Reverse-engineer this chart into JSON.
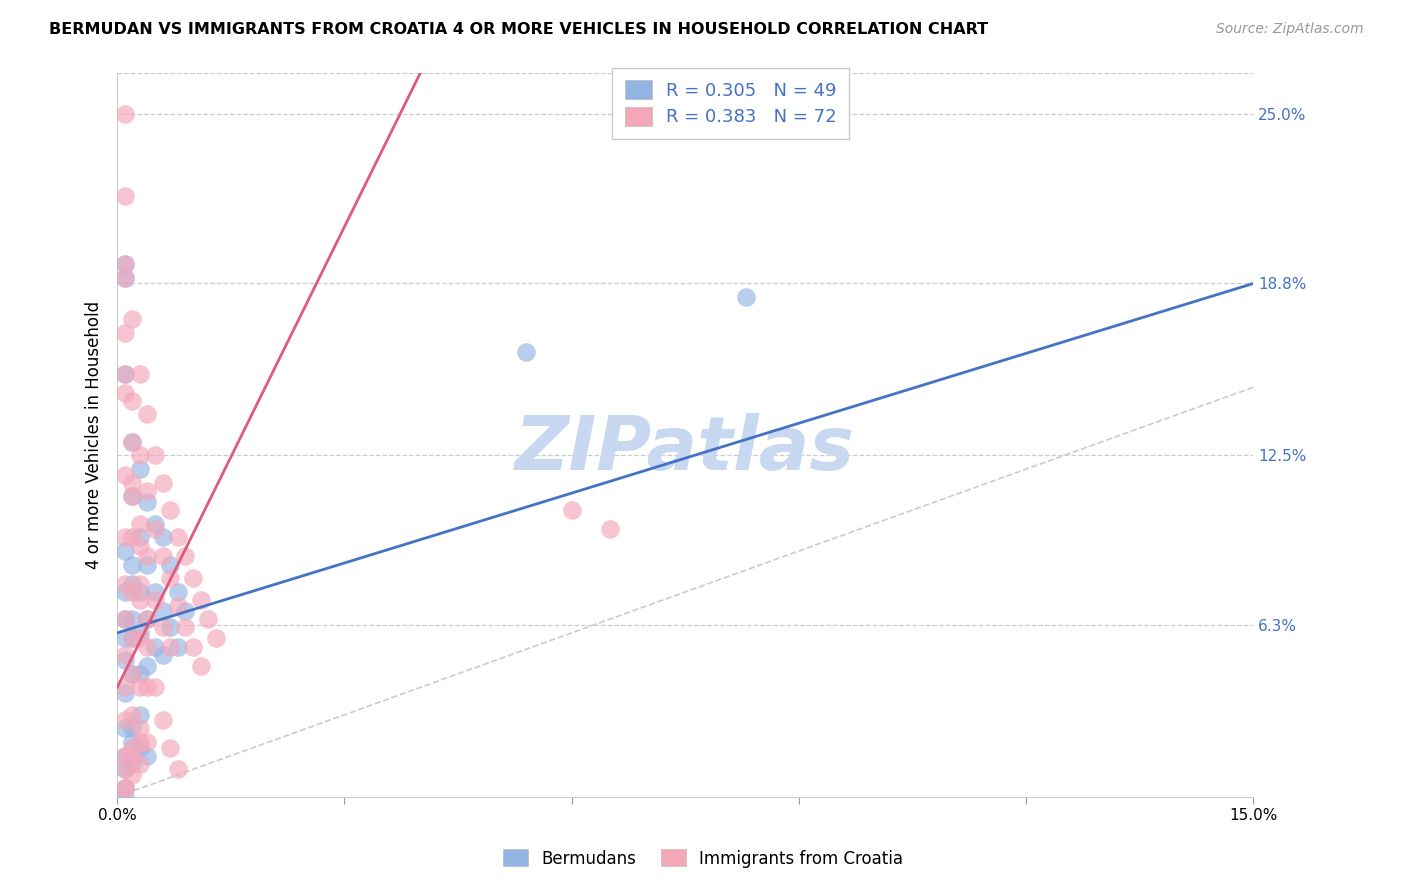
{
  "title": "BERMUDAN VS IMMIGRANTS FROM CROATIA 4 OR MORE VEHICLES IN HOUSEHOLD CORRELATION CHART",
  "source": "Source: ZipAtlas.com",
  "ylabel": "4 or more Vehicles in Household",
  "xlim": [
    0.0,
    0.15
  ],
  "ylim": [
    0.0,
    0.265
  ],
  "xticks": [
    0.0,
    0.03,
    0.06,
    0.09,
    0.12,
    0.15
  ],
  "xtick_labels": [
    "0.0%",
    "",
    "",
    "",
    "",
    "15.0%"
  ],
  "ytick_labels_right": [
    "6.3%",
    "12.5%",
    "18.8%",
    "25.0%"
  ],
  "ytick_vals_right": [
    0.063,
    0.125,
    0.188,
    0.25
  ],
  "color_blue": "#92b4e3",
  "color_pink": "#f4a7b9",
  "line_blue": "#4472c4",
  "line_pink": "#e05a7a",
  "diagonal_color": "#cccccc",
  "watermark": "ZIPatlas",
  "watermark_color": "#c8d8f0",
  "blue_line_x": [
    0.0,
    0.15
  ],
  "blue_line_y": [
    0.06,
    0.188
  ],
  "pink_line_x": [
    0.0,
    0.04
  ],
  "pink_line_y": [
    0.04,
    0.265
  ],
  "blue_x": [
    0.001,
    0.001,
    0.001,
    0.001,
    0.001,
    0.001,
    0.001,
    0.001,
    0.001,
    0.001,
    0.002,
    0.002,
    0.002,
    0.002,
    0.002,
    0.002,
    0.002,
    0.002,
    0.003,
    0.003,
    0.003,
    0.003,
    0.003,
    0.003,
    0.004,
    0.004,
    0.004,
    0.004,
    0.005,
    0.005,
    0.005,
    0.006,
    0.006,
    0.006,
    0.007,
    0.007,
    0.008,
    0.008,
    0.009,
    0.001,
    0.001,
    0.001,
    0.002,
    0.002,
    0.003,
    0.004,
    0.054,
    0.083,
    0.001
  ],
  "blue_y": [
    0.195,
    0.19,
    0.155,
    0.09,
    0.075,
    0.065,
    0.058,
    0.05,
    0.038,
    0.025,
    0.13,
    0.11,
    0.085,
    0.078,
    0.065,
    0.058,
    0.045,
    0.025,
    0.12,
    0.095,
    0.075,
    0.06,
    0.045,
    0.03,
    0.108,
    0.085,
    0.065,
    0.048,
    0.1,
    0.075,
    0.055,
    0.095,
    0.068,
    0.052,
    0.085,
    0.062,
    0.075,
    0.055,
    0.068,
    0.015,
    0.01,
    0.003,
    0.02,
    0.012,
    0.018,
    0.015,
    0.163,
    0.183,
    0.0
  ],
  "pink_x": [
    0.001,
    0.001,
    0.001,
    0.001,
    0.001,
    0.001,
    0.001,
    0.001,
    0.001,
    0.001,
    0.001,
    0.001,
    0.001,
    0.002,
    0.002,
    0.002,
    0.002,
    0.002,
    0.002,
    0.002,
    0.002,
    0.002,
    0.003,
    0.003,
    0.003,
    0.003,
    0.003,
    0.003,
    0.003,
    0.004,
    0.004,
    0.004,
    0.004,
    0.004,
    0.005,
    0.005,
    0.005,
    0.006,
    0.006,
    0.006,
    0.007,
    0.007,
    0.007,
    0.008,
    0.008,
    0.009,
    0.009,
    0.01,
    0.01,
    0.011,
    0.011,
    0.012,
    0.013,
    0.001,
    0.001,
    0.002,
    0.002,
    0.003,
    0.003,
    0.004,
    0.06,
    0.065,
    0.001,
    0.001,
    0.001,
    0.002,
    0.002,
    0.003,
    0.003,
    0.004,
    0.005,
    0.006,
    0.007,
    0.008
  ],
  "pink_y": [
    0.25,
    0.22,
    0.195,
    0.155,
    0.118,
    0.095,
    0.078,
    0.065,
    0.052,
    0.04,
    0.028,
    0.015,
    0.003,
    0.175,
    0.145,
    0.115,
    0.095,
    0.075,
    0.058,
    0.045,
    0.03,
    0.015,
    0.155,
    0.125,
    0.1,
    0.078,
    0.058,
    0.04,
    0.02,
    0.14,
    0.112,
    0.088,
    0.065,
    0.04,
    0.125,
    0.098,
    0.072,
    0.115,
    0.088,
    0.062,
    0.105,
    0.08,
    0.055,
    0.095,
    0.07,
    0.088,
    0.062,
    0.08,
    0.055,
    0.072,
    0.048,
    0.065,
    0.058,
    0.01,
    0.003,
    0.018,
    0.008,
    0.025,
    0.012,
    0.02,
    0.105,
    0.098,
    0.19,
    0.17,
    0.148,
    0.13,
    0.11,
    0.092,
    0.072,
    0.055,
    0.04,
    0.028,
    0.018,
    0.01
  ]
}
